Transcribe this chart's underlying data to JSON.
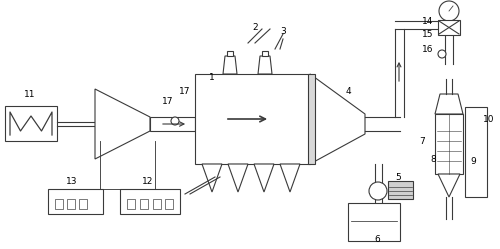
{
  "bg_color": "#ffffff",
  "line_color": "#3a3a3a",
  "lw": 0.8,
  "fig_width": 5.0,
  "fig_height": 2.49,
  "dpi": 100
}
